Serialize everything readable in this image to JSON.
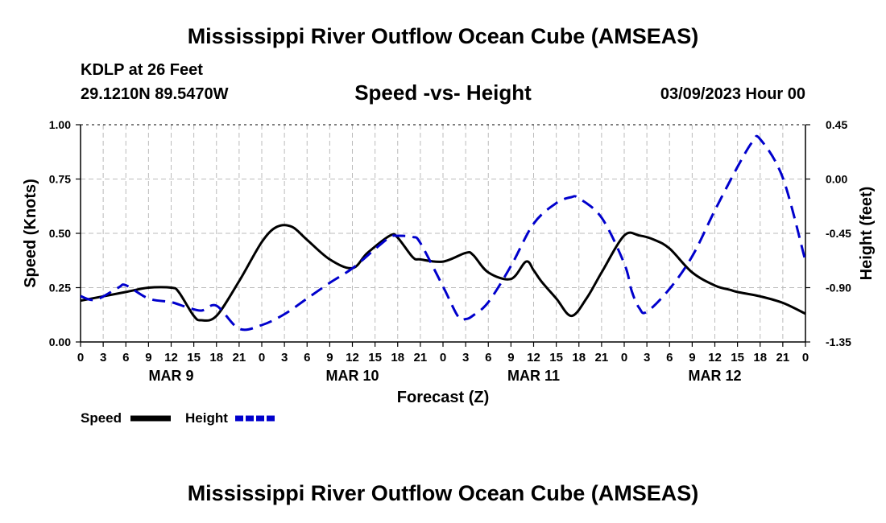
{
  "header": {
    "title": "Mississippi River Outflow Ocean Cube (AMSEAS)",
    "station": "KDLP at 26 Feet",
    "coords": "29.1210N  89.5470W",
    "subtitle": "Speed -vs- Height",
    "datetime": "03/09/2023 Hour 00",
    "footer_title": "Mississippi River Outflow Ocean Cube (AMSEAS)"
  },
  "colors": {
    "speed": "#000000",
    "height": "#0000cc",
    "grid": "#bbbbbb"
  },
  "chart_data": {
    "type": "line",
    "title": "Speed -vs- Height",
    "xlabel": "Forecast (Z)",
    "ylabel": "Speed (Knots)",
    "y2label": "Height (feet)",
    "xlim": [
      0,
      96
    ],
    "ylim": [
      0,
      1.0
    ],
    "y2lim": [
      -1.35,
      0.45
    ],
    "x_ticks": [
      0,
      3,
      6,
      9,
      12,
      15,
      18,
      21,
      24,
      27,
      30,
      33,
      36,
      39,
      42,
      45,
      48,
      51,
      54,
      57,
      60,
      63,
      66,
      69,
      72,
      75,
      78,
      81,
      84,
      87,
      90,
      93,
      96
    ],
    "x_tick_labels": [
      "0",
      "3",
      "6",
      "9",
      "12",
      "15",
      "18",
      "21",
      "0",
      "3",
      "6",
      "9",
      "12",
      "15",
      "18",
      "21",
      "0",
      "3",
      "6",
      "9",
      "12",
      "15",
      "18",
      "21",
      "0",
      "3",
      "6",
      "9",
      "12",
      "15",
      "18",
      "21",
      "0"
    ],
    "y_ticks": [
      0,
      0.25,
      0.5,
      0.75,
      1.0
    ],
    "y_tick_labels": [
      "0.00",
      "0.25",
      "0.50",
      "0.75",
      "1.00"
    ],
    "y2_ticks": [
      -1.35,
      -0.9,
      -0.45,
      0.0,
      0.45
    ],
    "y2_tick_labels": [
      "-1.35",
      "-0.90",
      "-0.45",
      "0.00",
      "0.45"
    ],
    "day_labels": [
      {
        "x": 12,
        "label": "MAR 9"
      },
      {
        "x": 36,
        "label": "MAR 10"
      },
      {
        "x": 60,
        "label": "MAR 11"
      },
      {
        "x": 84,
        "label": "MAR 12"
      }
    ],
    "grid": true,
    "legend_position": "bottom-left",
    "series": [
      {
        "name": "Speed",
        "axis": "left",
        "style": "solid",
        "x": [
          0,
          3,
          6,
          9,
          12,
          13,
          15,
          16,
          18,
          21,
          24,
          26,
          28,
          30,
          33,
          36,
          38,
          41,
          42,
          44,
          45,
          48,
          51,
          52,
          54,
          57,
          59,
          60,
          61,
          63,
          65,
          67,
          69,
          72,
          74,
          76,
          78,
          81,
          84,
          86,
          87,
          90,
          93,
          96
        ],
        "y": [
          0.19,
          0.21,
          0.23,
          0.25,
          0.25,
          0.23,
          0.12,
          0.1,
          0.12,
          0.28,
          0.46,
          0.53,
          0.53,
          0.47,
          0.38,
          0.34,
          0.41,
          0.49,
          0.48,
          0.39,
          0.38,
          0.37,
          0.41,
          0.4,
          0.32,
          0.29,
          0.37,
          0.33,
          0.28,
          0.2,
          0.12,
          0.2,
          0.32,
          0.49,
          0.49,
          0.47,
          0.43,
          0.32,
          0.26,
          0.24,
          0.23,
          0.21,
          0.18,
          0.13
        ]
      },
      {
        "name": "Height",
        "axis": "right",
        "style": "dashed",
        "x": [
          0,
          2,
          5,
          6,
          9,
          12,
          14,
          16,
          18,
          21,
          24,
          27,
          30,
          33,
          36,
          39,
          41,
          42,
          44,
          45,
          48,
          50,
          51,
          52,
          54,
          57,
          60,
          63,
          65,
          66,
          69,
          72,
          73,
          74,
          75,
          78,
          81,
          84,
          87,
          89,
          90,
          93,
          96
        ],
        "y": [
          -0.97,
          -1.0,
          -0.9,
          -0.88,
          -0.99,
          -1.02,
          -1.06,
          -1.09,
          -1.05,
          -1.24,
          -1.21,
          -1.12,
          -0.99,
          -0.86,
          -0.74,
          -0.58,
          -0.48,
          -0.47,
          -0.48,
          -0.53,
          -0.89,
          -1.14,
          -1.16,
          -1.13,
          -1.02,
          -0.72,
          -0.37,
          -0.2,
          -0.15,
          -0.16,
          -0.32,
          -0.7,
          -0.93,
          -1.07,
          -1.1,
          -0.91,
          -0.64,
          -0.26,
          0.1,
          0.31,
          0.33,
          0.01,
          -0.68
        ]
      }
    ]
  },
  "legend": {
    "speed_label": "Speed",
    "height_label": "Height"
  }
}
